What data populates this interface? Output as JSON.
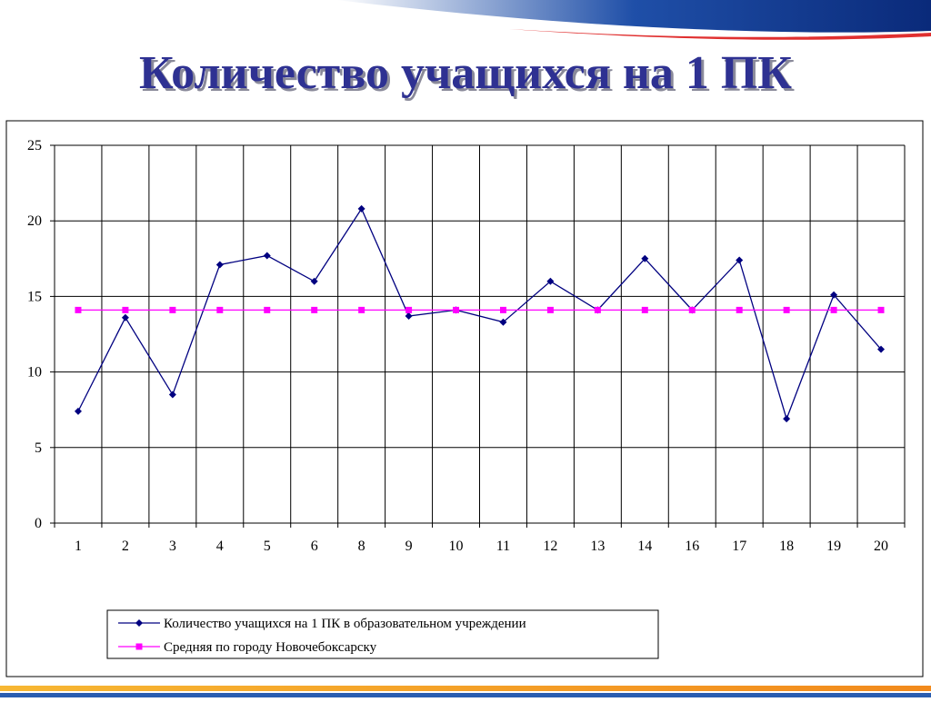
{
  "chart_data": {
    "type": "line",
    "title": "Количество учащихся на 1 ПК",
    "categories": [
      "1",
      "2",
      "3",
      "4",
      "5",
      "6",
      "8",
      "9",
      "10",
      "11",
      "12",
      "13",
      "14",
      "16",
      "17",
      "18",
      "19",
      "20"
    ],
    "series": [
      {
        "name": "Количество учащихся на 1 ПК в образовательном учреждении",
        "color": "#000080",
        "marker": "diamond",
        "values": [
          7.4,
          13.6,
          8.5,
          17.1,
          17.7,
          16.0,
          20.8,
          13.7,
          14.1,
          13.3,
          16.0,
          14.1,
          17.5,
          14.1,
          17.4,
          6.9,
          15.1,
          11.5
        ]
      },
      {
        "name": "Средняя по городу Новочебоксарску",
        "color": "#ff00ff",
        "marker": "square",
        "values": [
          14.1,
          14.1,
          14.1,
          14.1,
          14.1,
          14.1,
          14.1,
          14.1,
          14.1,
          14.1,
          14.1,
          14.1,
          14.1,
          14.1,
          14.1,
          14.1,
          14.1,
          14.1
        ]
      }
    ],
    "ylim": [
      0,
      25
    ],
    "yticks": [
      0,
      5,
      10,
      15,
      20,
      25
    ],
    "grid": true,
    "legend": "bottom"
  }
}
